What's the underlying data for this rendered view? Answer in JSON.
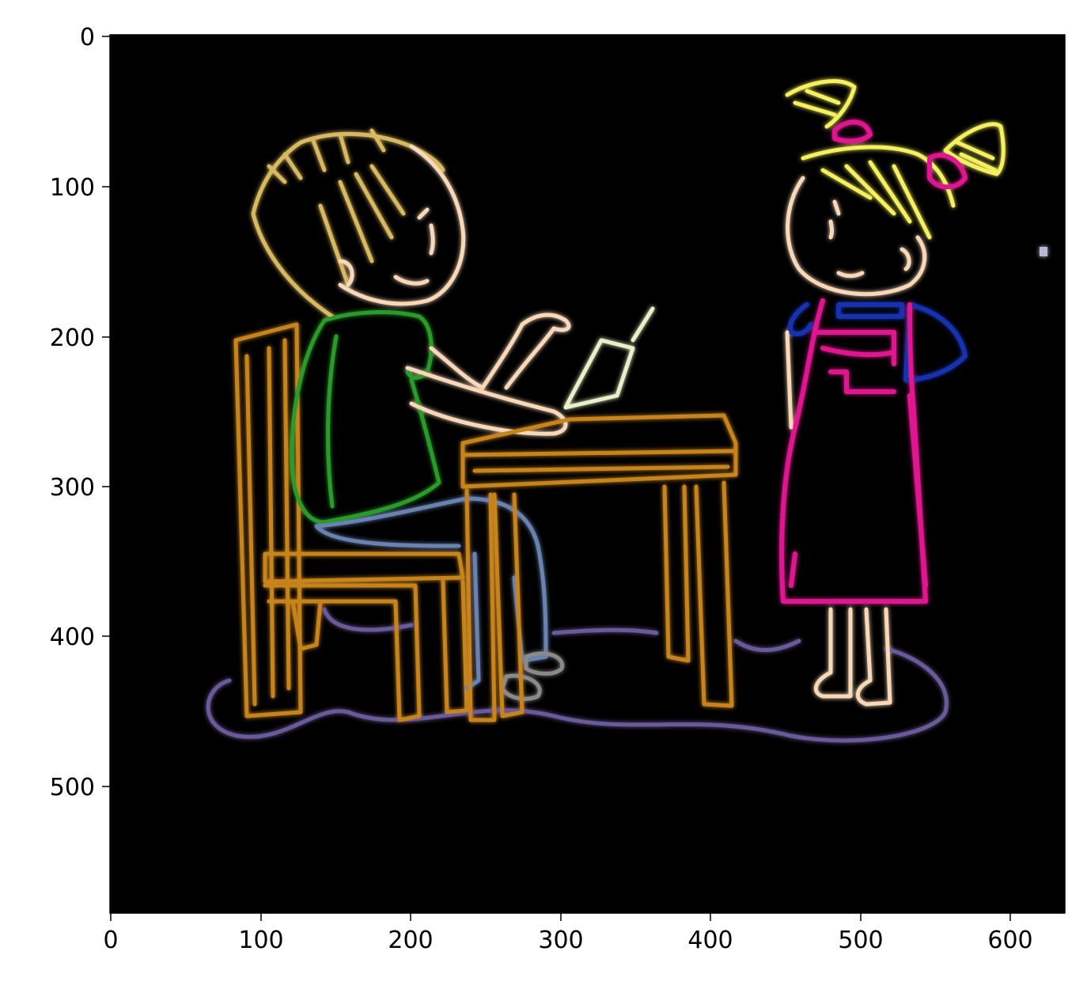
{
  "axes": {
    "x_ticks": [
      "0",
      "100",
      "200",
      "300",
      "400",
      "500",
      "600"
    ],
    "y_ticks": [
      "0",
      "100",
      "200",
      "300",
      "400",
      "500"
    ]
  },
  "image": {
    "background": "#000000",
    "colors": {
      "hair": "#d8b860",
      "girl_hair": "#f4f060",
      "skin": "#f8d8b8",
      "shirt": "#2a9a2a",
      "jeans": "#6a82b0",
      "wood": "#c8841c",
      "apron": "#e01890",
      "sleeve": "#1830b0",
      "glow": "#8a7ab8",
      "shoe": "#8a8a8a"
    }
  }
}
